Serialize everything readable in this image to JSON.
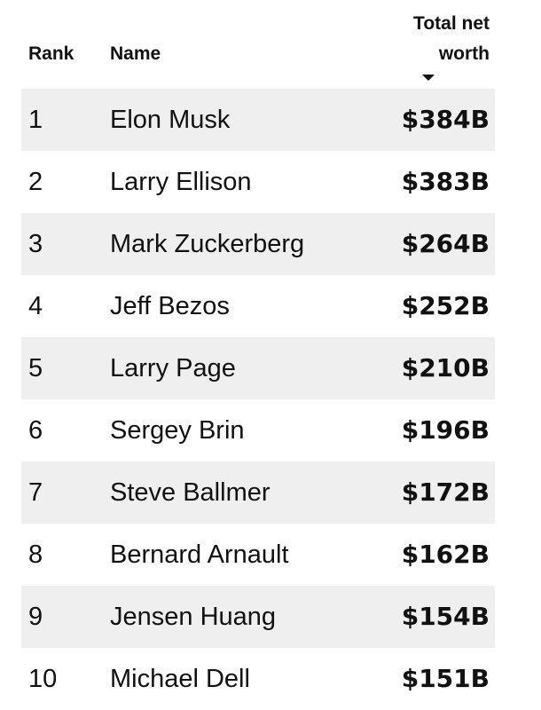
{
  "table": {
    "header": [
      "Rank",
      "Name",
      "Total net worth"
    ],
    "rows": [
      [
        "1",
        "Elon Musk",
        "$384B"
      ],
      [
        "2",
        "Larry Ellison",
        "$383B"
      ],
      [
        "3",
        "Mark Zuckerberg",
        "$264B"
      ],
      [
        "4",
        "Jeff Bezos",
        "$252B"
      ],
      [
        "5",
        "Larry Page",
        "$210B"
      ],
      [
        "6",
        "Sergey Brin",
        "$196B"
      ],
      [
        "7",
        "Steve Ballmer",
        "$172B"
      ],
      [
        "8",
        "Bernard Arnault",
        "$162B"
      ],
      [
        "9",
        "Jensen Huang",
        "$154B"
      ],
      [
        "10",
        "Michael Dell",
        "$151B"
      ]
    ]
  }
}
